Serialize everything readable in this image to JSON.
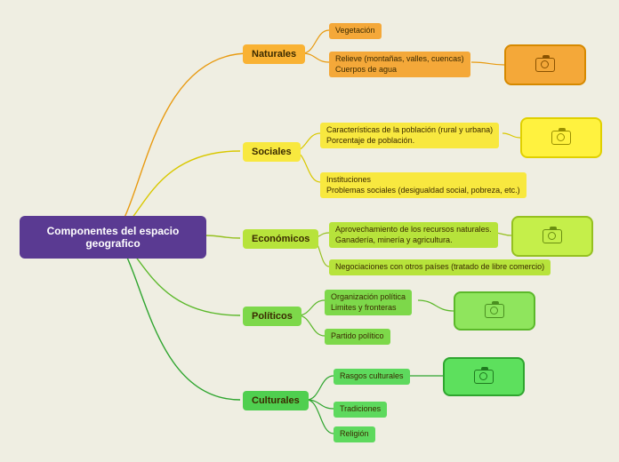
{
  "root": {
    "label": "Componentes del espacio geografico",
    "bg": "#5a3a92",
    "text": "#ffffff"
  },
  "branches": [
    {
      "key": "naturales",
      "label": "Naturales",
      "bg": "#f9b233",
      "stroke": "#e89a10",
      "leaf_bg": "#f4a839",
      "card": {
        "bg": "#f4a839",
        "border": "#d68900",
        "icon_color": "#8a5200"
      },
      "leaves": [
        {
          "text": "Vegetación"
        },
        {
          "text": "Relieve (montañas, valles, cuencas)\nCuerpos de agua"
        }
      ]
    },
    {
      "key": "sociales",
      "label": "Sociales",
      "bg": "#f8e83f",
      "stroke": "#d9c800",
      "leaf_bg": "#f8e83f",
      "card": {
        "bg": "#fff23f",
        "border": "#e0d000",
        "icon_color": "#9a9000"
      },
      "leaves": [
        {
          "text": "Características de la población (rural y urbana)\nPorcentaje de población."
        },
        {
          "text": "Instituciones\nProblemas sociales (desigualdad social, pobreza, etc.)"
        }
      ]
    },
    {
      "key": "economicos",
      "label": "Económicos",
      "bg": "#b7e33b",
      "stroke": "#95c020",
      "leaf_bg": "#b7e33b",
      "card": {
        "bg": "#c5ef4a",
        "border": "#95c020",
        "icon_color": "#6a8e10"
      },
      "leaves": [
        {
          "text": "Aprovechamiento de los recursos naturales.\nGanadería, minería y agricultura."
        },
        {
          "text": "Negociaciones con otros países (tratado de libre comercio)"
        }
      ]
    },
    {
      "key": "politicos",
      "label": "Políticos",
      "bg": "#7dd84a",
      "stroke": "#5bb82a",
      "leaf_bg": "#7dd84a",
      "card": {
        "bg": "#8fe55d",
        "border": "#5bb82a",
        "icon_color": "#4a8f20"
      },
      "leaves": [
        {
          "text": "Organización política\nLimites y fronteras"
        },
        {
          "text": "Partido político"
        }
      ]
    },
    {
      "key": "culturales",
      "label": "Culturales",
      "bg": "#4fcf4f",
      "stroke": "#2fa52f",
      "leaf_bg": "#5dd95d",
      "card": {
        "bg": "#5de05d",
        "border": "#2fa52f",
        "icon_color": "#1f7a1f"
      },
      "leaves": [
        {
          "text": "Rasgos culturales"
        },
        {
          "text": "Tradiciones"
        },
        {
          "text": "Religión"
        }
      ]
    }
  ]
}
